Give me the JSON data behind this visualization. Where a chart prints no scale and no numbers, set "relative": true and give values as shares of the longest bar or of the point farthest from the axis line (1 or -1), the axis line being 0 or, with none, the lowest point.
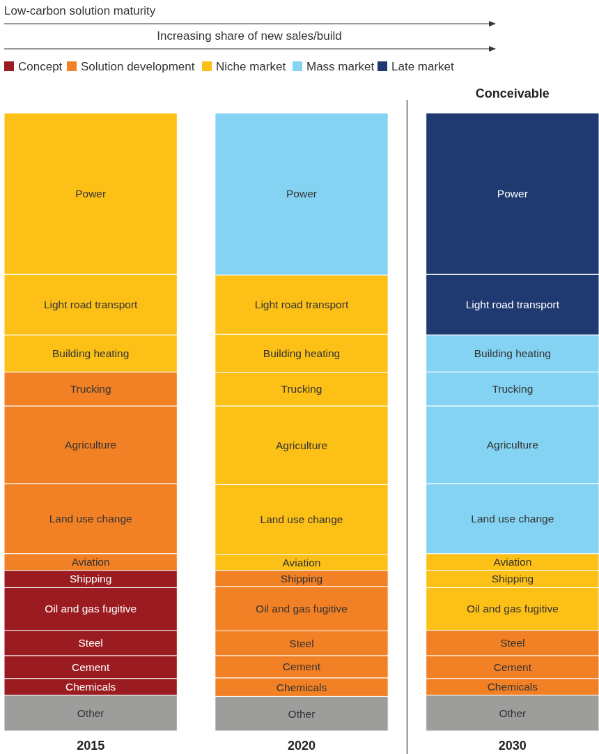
{
  "chart_data": {
    "type": "bar",
    "stacked": true,
    "relative": true,
    "categories": [
      "2015",
      "2020",
      "2030"
    ],
    "legend": "top left",
    "annotations": [
      "Low-carbon solution maturity",
      "Increasing share of new sales/build",
      "Conceivable"
    ],
    "series": [
      {
        "name": "Concept",
        "color": "#9b1c20",
        "values": [
          null,
          null,
          null
        ]
      },
      {
        "name": "Solution development",
        "color": "#f28025",
        "values": [
          null,
          null,
          null
        ]
      },
      {
        "name": "Niche market",
        "color": "#fcc016",
        "values": [
          null,
          null,
          null
        ]
      },
      {
        "name": "Mass market",
        "color": "#84d3f3",
        "values": [
          null,
          null,
          null
        ]
      },
      {
        "name": "Late market",
        "color": "#1f3a70",
        "values": [
          null,
          null,
          null
        ]
      },
      {
        "name": "Other",
        "colors": [
          "#9d9d9b",
          "#9d9d9b",
          "#9d9d9b"
        ],
        "values": [
          0.058,
          0.056,
          0.058
        ]
      },
      {
        "name": "Chemicals",
        "colors": [
          "#9b1c20",
          "#f28025",
          "#f28025"
        ],
        "values": [
          0.027,
          0.03,
          0.027
        ]
      },
      {
        "name": "Cement",
        "colors": [
          "#9b1c20",
          "#f28025",
          "#f28025"
        ],
        "values": [
          0.037,
          0.036,
          0.037
        ]
      },
      {
        "name": "Steel",
        "colors": [
          "#9b1c20",
          "#f28025",
          "#f28025"
        ],
        "values": [
          0.041,
          0.04,
          0.041
        ]
      },
      {
        "name": "Oil and gas fugitive",
        "colors": [
          "#9b1c20",
          "#f28025",
          "#fcc016"
        ],
        "values": [
          0.069,
          0.072,
          0.069
        ]
      },
      {
        "name": "Shipping",
        "colors": [
          "#9b1c20",
          "#f28025",
          "#fcc016"
        ],
        "values": [
          0.028,
          0.026,
          0.028
        ]
      },
      {
        "name": "Aviation",
        "colors": [
          "#f28025",
          "#fcc016",
          "#fcc016"
        ],
        "values": [
          0.027,
          0.026,
          0.027
        ]
      },
      {
        "name": "Land use change",
        "colors": [
          "#f28025",
          "#fcc016",
          "#84d3f3"
        ],
        "values": [
          0.113,
          0.113,
          0.113
        ]
      },
      {
        "name": "Agriculture",
        "colors": [
          "#f28025",
          "#fcc016",
          "#84d3f3"
        ],
        "values": [
          0.126,
          0.127,
          0.126
        ]
      },
      {
        "name": "Trucking",
        "colors": [
          "#f28025",
          "#fcc016",
          "#84d3f3"
        ],
        "values": [
          0.055,
          0.054,
          0.055
        ]
      },
      {
        "name": "Building heating",
        "colors": [
          "#fcc016",
          "#fcc016",
          "#84d3f3"
        ],
        "values": [
          0.06,
          0.062,
          0.06
        ]
      },
      {
        "name": "Light road transport",
        "colors": [
          "#fcc016",
          "#fcc016",
          "#1f3a70"
        ],
        "values": [
          0.098,
          0.096,
          0.098
        ]
      },
      {
        "name": "Power",
        "colors": [
          "#fcc016",
          "#84d3f3",
          "#1f3a70"
        ],
        "values": [
          0.261,
          0.262,
          0.261
        ]
      }
    ]
  }
}
